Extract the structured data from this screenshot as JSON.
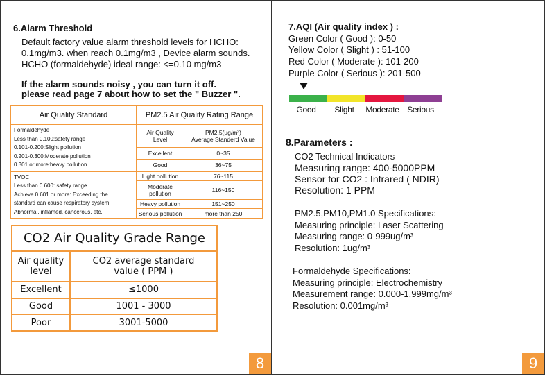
{
  "left_page": {
    "heading": "6.Alarm Threshold",
    "paragraph": [
      "Default factory value alarm threshold levels for HCHO:",
      "0.1mg/m3. when reach 0.1mg/m3 , Device alarm sounds.",
      "HCHO (formaldehyde) ideal range: <=0.10 mg/m3"
    ],
    "note": [
      "If the alarm sounds noisy , you can turn it off.",
      "please read page 7 about how to set the \" Buzzer \"."
    ],
    "standard_table": {
      "headers": [
        "Air Quality Standard",
        "PM2.5 Air Quality Rating Range"
      ],
      "formaldehyde": [
        "Formaldehyde",
        "Less than 0.100:safety range",
        "0.101-0.200:Slight pollution",
        "0.201-0.300:Moderate pollution",
        "0.301 or more:heavy pollution"
      ],
      "tvoc": [
        "TVOC",
        "Less than 0.600: safety range",
        "Achieve 0.601 or more: Exceeding the",
        "standard can cause respiratory system",
        "Abnormal, inflamed, cancerous, etc."
      ],
      "rating_header": [
        "Air Quality\nLevel",
        "PM2.5(ug/m³)\nAverage Standerd Value"
      ],
      "rating_rows": [
        [
          "Excellent",
          "0~35"
        ],
        [
          "Good",
          "36~75"
        ],
        [
          "Light pollution",
          "76~115"
        ],
        [
          "Moderate pollution",
          "116~150"
        ],
        [
          "Heavy pollution",
          "151~250"
        ],
        [
          "Serious pollution",
          "more than 250"
        ]
      ]
    },
    "co2_table": {
      "title": "CO2 Air Quality Grade Range",
      "headers": [
        "Air quality\nlevel",
        "CO2 average standard\nvalue ( PPM )"
      ],
      "rows": [
        [
          "Excellent",
          "≤1000"
        ],
        [
          "Good",
          "1001 - 3000"
        ],
        [
          "Poor",
          "3001-5000"
        ]
      ]
    },
    "page_number": "8"
  },
  "right_page": {
    "aqi_heading": "7.AQI (Air quality index ) :",
    "aqi_lines": [
      "Green Color ( Good ): 0-50",
      "Yellow Color ( Slight ) : 51-100",
      "Red Color ( Moderate ): 101-200",
      "Purple Color ( Serious ): 201-500"
    ],
    "scale_labels": [
      "Good",
      "Slight",
      "Moderate",
      "Serious"
    ],
    "params_heading": "8.Parameters :",
    "co2_params": [
      "CO2 Technical Indicators",
      "Measuring range: 400-5000PPM",
      "Sensor for CO2 : Infrared ( NDIR)",
      "Resolution: 1 PPM"
    ],
    "pm_params": [
      "PM2.5,PM10,PM1.0  Specifications:",
      "Measuring principle: Laser Scattering",
      "Measuring range: 0-999ug/m³",
      "Resolution: 1ug/m³"
    ],
    "hcho_params": [
      "Formaldehyde Specifications:",
      "Measuring principle: Electrochemistry",
      "Measurement range: 0.000-1.999mg/m³",
      "Resolution: 0.001mg/m³"
    ],
    "page_number": "9"
  }
}
